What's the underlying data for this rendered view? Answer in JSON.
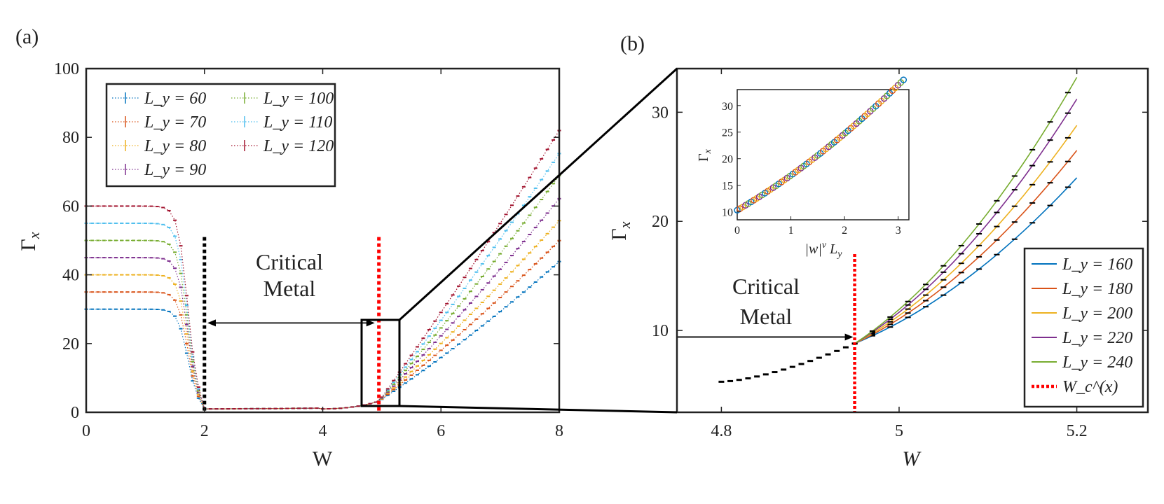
{
  "chart_data": [
    {
      "panel": "(a)",
      "type": "line",
      "xlabel": "W",
      "ylabel": "Γ_x",
      "xlim": [
        0,
        8
      ],
      "ylim": [
        0,
        100
      ],
      "xticks": [
        "0",
        "2",
        "4",
        "6",
        "8"
      ],
      "yticks": [
        "0",
        "20",
        "40",
        "60",
        "80",
        "100"
      ],
      "annotation": [
        "Critical",
        "Metal"
      ],
      "markers": [
        {
          "x": 2.0,
          "color": "#000000"
        },
        {
          "x": 4.95,
          "color": "#ff0000"
        }
      ],
      "series": [
        {
          "name": "L_y = 60",
          "color": "#0072BD",
          "plateau": 30,
          "slope": 11.5
        },
        {
          "name": "L_y = 70",
          "color": "#D95319",
          "plateau": 35,
          "slope": 13.5
        },
        {
          "name": "L_y = 80",
          "color": "#EDB120",
          "plateau": 40,
          "slope": 15.4
        },
        {
          "name": "L_y = 90",
          "color": "#7E2F8E",
          "plateau": 45,
          "slope": 17.5
        },
        {
          "name": "L_y = 100",
          "color": "#77AC30",
          "plateau": 50,
          "slope": 19.7
        },
        {
          "name": "L_y = 110",
          "color": "#4DBEEE",
          "plateau": 55,
          "slope": 21.8
        },
        {
          "name": "L_y = 120",
          "color": "#A2142F",
          "plateau": 60,
          "slope": 24.0
        }
      ]
    },
    {
      "panel": "(b)",
      "type": "line",
      "xlabel": "W",
      "ylabel": "Γ_x",
      "xlim": [
        4.75,
        5.28
      ],
      "ylim": [
        2.5,
        34
      ],
      "xticks": [
        "4.8",
        "5",
        "5.2"
      ],
      "yticks": [
        "10",
        "20",
        "30"
      ],
      "annotation": [
        "Critical",
        "Metal"
      ],
      "critical_W": 4.95,
      "critical_legend": "W_c^(x)",
      "series": [
        {
          "name": "L_y = 160",
          "color": "#0072BD",
          "end": 24
        },
        {
          "name": "L_y = 180",
          "color": "#D95319",
          "end": 26.5
        },
        {
          "name": "L_y = 200",
          "color": "#EDB120",
          "end": 28.8
        },
        {
          "name": "L_y = 220",
          "color": "#7E2F8E",
          "end": 31.2
        },
        {
          "name": "L_y = 240",
          "color": "#77AC30",
          "end": 33.2
        }
      ],
      "inset": {
        "type": "scatter",
        "xlabel": "|w|^ν L_y",
        "ylabel": "Γ_x",
        "xlim": [
          0,
          3.2
        ],
        "ylim": [
          8.5,
          33
        ],
        "xticks": [
          "0",
          "1",
          "2",
          "3"
        ],
        "yticks": [
          "10",
          "15",
          "20",
          "25",
          "30"
        ]
      }
    }
  ]
}
